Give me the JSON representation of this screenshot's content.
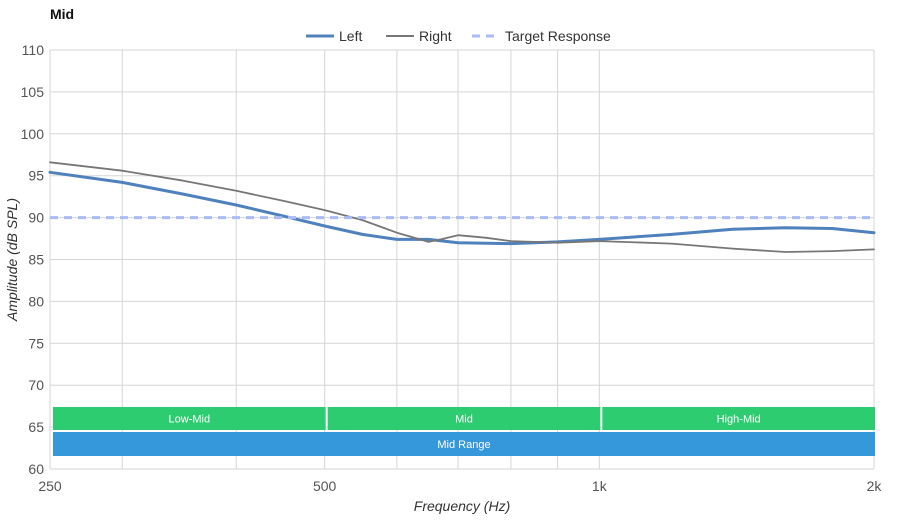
{
  "title": "Mid",
  "chart_data": {
    "type": "line",
    "title": "Mid",
    "xlabel": "Frequency (Hz)",
    "ylabel": "Amplitude (dB SPL)",
    "x_scale": "log",
    "xlim": [
      250,
      2000
    ],
    "ylim": [
      60,
      110
    ],
    "x_ticks": [
      250,
      500,
      1000,
      2000
    ],
    "x_tick_labels": [
      "250",
      "500",
      "1k",
      "2k"
    ],
    "y_ticks": [
      60,
      65,
      70,
      75,
      80,
      85,
      90,
      95,
      100,
      105,
      110
    ],
    "x_minor_gridlines": [
      300,
      400,
      600,
      700,
      800,
      900
    ],
    "legend_position": "top-center",
    "grid": true,
    "series": [
      {
        "name": "Left",
        "color": "#4f81bd",
        "style": "solid-thick",
        "x": [
          250,
          300,
          350,
          400,
          450,
          500,
          550,
          600,
          650,
          700,
          800,
          900,
          1000,
          1200,
          1400,
          1600,
          1800,
          2000
        ],
        "y": [
          95.4,
          94.2,
          92.8,
          91.5,
          90.2,
          89.0,
          88.0,
          87.4,
          87.4,
          87.0,
          86.9,
          87.1,
          87.4,
          88.0,
          88.6,
          88.8,
          88.7,
          88.2
        ]
      },
      {
        "name": "Right",
        "color": "#777777",
        "style": "solid",
        "x": [
          250,
          300,
          350,
          400,
          450,
          500,
          550,
          600,
          650,
          670,
          700,
          750,
          800,
          900,
          1000,
          1200,
          1400,
          1600,
          1800,
          2000
        ],
        "y": [
          96.6,
          95.6,
          94.4,
          93.2,
          92.0,
          90.9,
          89.7,
          88.2,
          87.1,
          87.4,
          87.9,
          87.6,
          87.2,
          87.0,
          87.2,
          86.9,
          86.3,
          85.9,
          86.0,
          86.2
        ]
      },
      {
        "name": "Target Response",
        "color": "#aabbf5",
        "style": "dashed",
        "x": [
          250,
          2000
        ],
        "y": [
          90,
          90
        ]
      }
    ],
    "bands": [
      {
        "label": "Low-Mid",
        "from": 250,
        "to": 500,
        "color": "#2ecc71",
        "row": 1
      },
      {
        "label": "Mid",
        "from": 500,
        "to": 1000,
        "color": "#2ecc71",
        "row": 1
      },
      {
        "label": "High-Mid",
        "from": 1000,
        "to": 2000,
        "color": "#2ecc71",
        "row": 1
      },
      {
        "label": "Mid Range",
        "from": 250,
        "to": 2000,
        "color": "#3498db",
        "row": 2
      }
    ]
  }
}
